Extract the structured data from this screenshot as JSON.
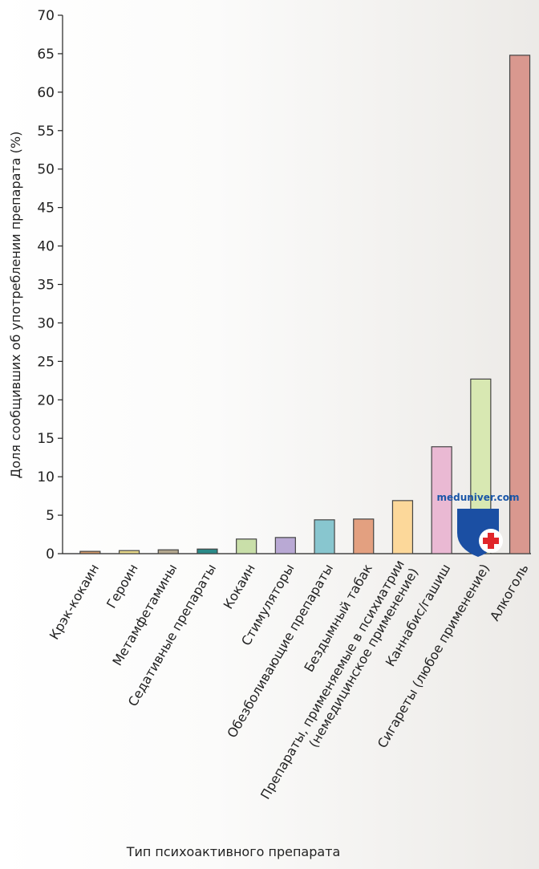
{
  "chart_data": {
    "type": "bar",
    "title": "",
    "xlabel": "Тип психоактивного препарата",
    "ylabel": "Доля сообщивших об употреблении препарата (%)",
    "ylim": [
      0,
      70
    ],
    "yticks": [
      0,
      5,
      10,
      15,
      20,
      25,
      30,
      35,
      40,
      45,
      50,
      55,
      60,
      65,
      70
    ],
    "grid": false,
    "categories": [
      "Крэк-кокаин",
      "Героин",
      "Метамфетамины",
      "Седативные препараты",
      "Кокаин",
      "Стимуляторы",
      "Обезболивающие препараты",
      "Бездымный табак",
      "Препараты, применяемые в психиатрии (немедицинское применение)",
      "Каннабис/гашиш",
      "Сигареты (любое применение)",
      "Алкоголь"
    ],
    "category_label_lines": [
      [
        "Крэк-кокаин"
      ],
      [
        "Героин"
      ],
      [
        "Метамфетамины"
      ],
      [
        "Седативные препараты"
      ],
      [
        "Кокаин"
      ],
      [
        "Стимуляторы"
      ],
      [
        "Обезболивающие препараты"
      ],
      [
        "Бездымный табак"
      ],
      [
        "Препараты, применяемые в психиатрии",
        "(немедицинское применение)"
      ],
      [
        "Каннабис/гашиш"
      ],
      [
        "Сигареты (любое применение)"
      ],
      [
        "Алкоголь"
      ]
    ],
    "values": [
      0.3,
      0.4,
      0.5,
      0.6,
      1.9,
      2.1,
      4.4,
      4.5,
      6.9,
      13.9,
      22.7,
      64.8
    ],
    "colors": [
      "#d49a6a",
      "#e8d98a",
      "#b3a78e",
      "#2a8a88",
      "#c9dfa9",
      "#b9a9d4",
      "#88c6cf",
      "#e3a080",
      "#fcd89a",
      "#eab9d3",
      "#d8e8b2",
      "#d9988f"
    ]
  },
  "watermark": {
    "text": "meduniver.com",
    "icon": "medical-shield-icon",
    "shield_color": "#1b4fa3",
    "cross_color": "#e0262b"
  }
}
